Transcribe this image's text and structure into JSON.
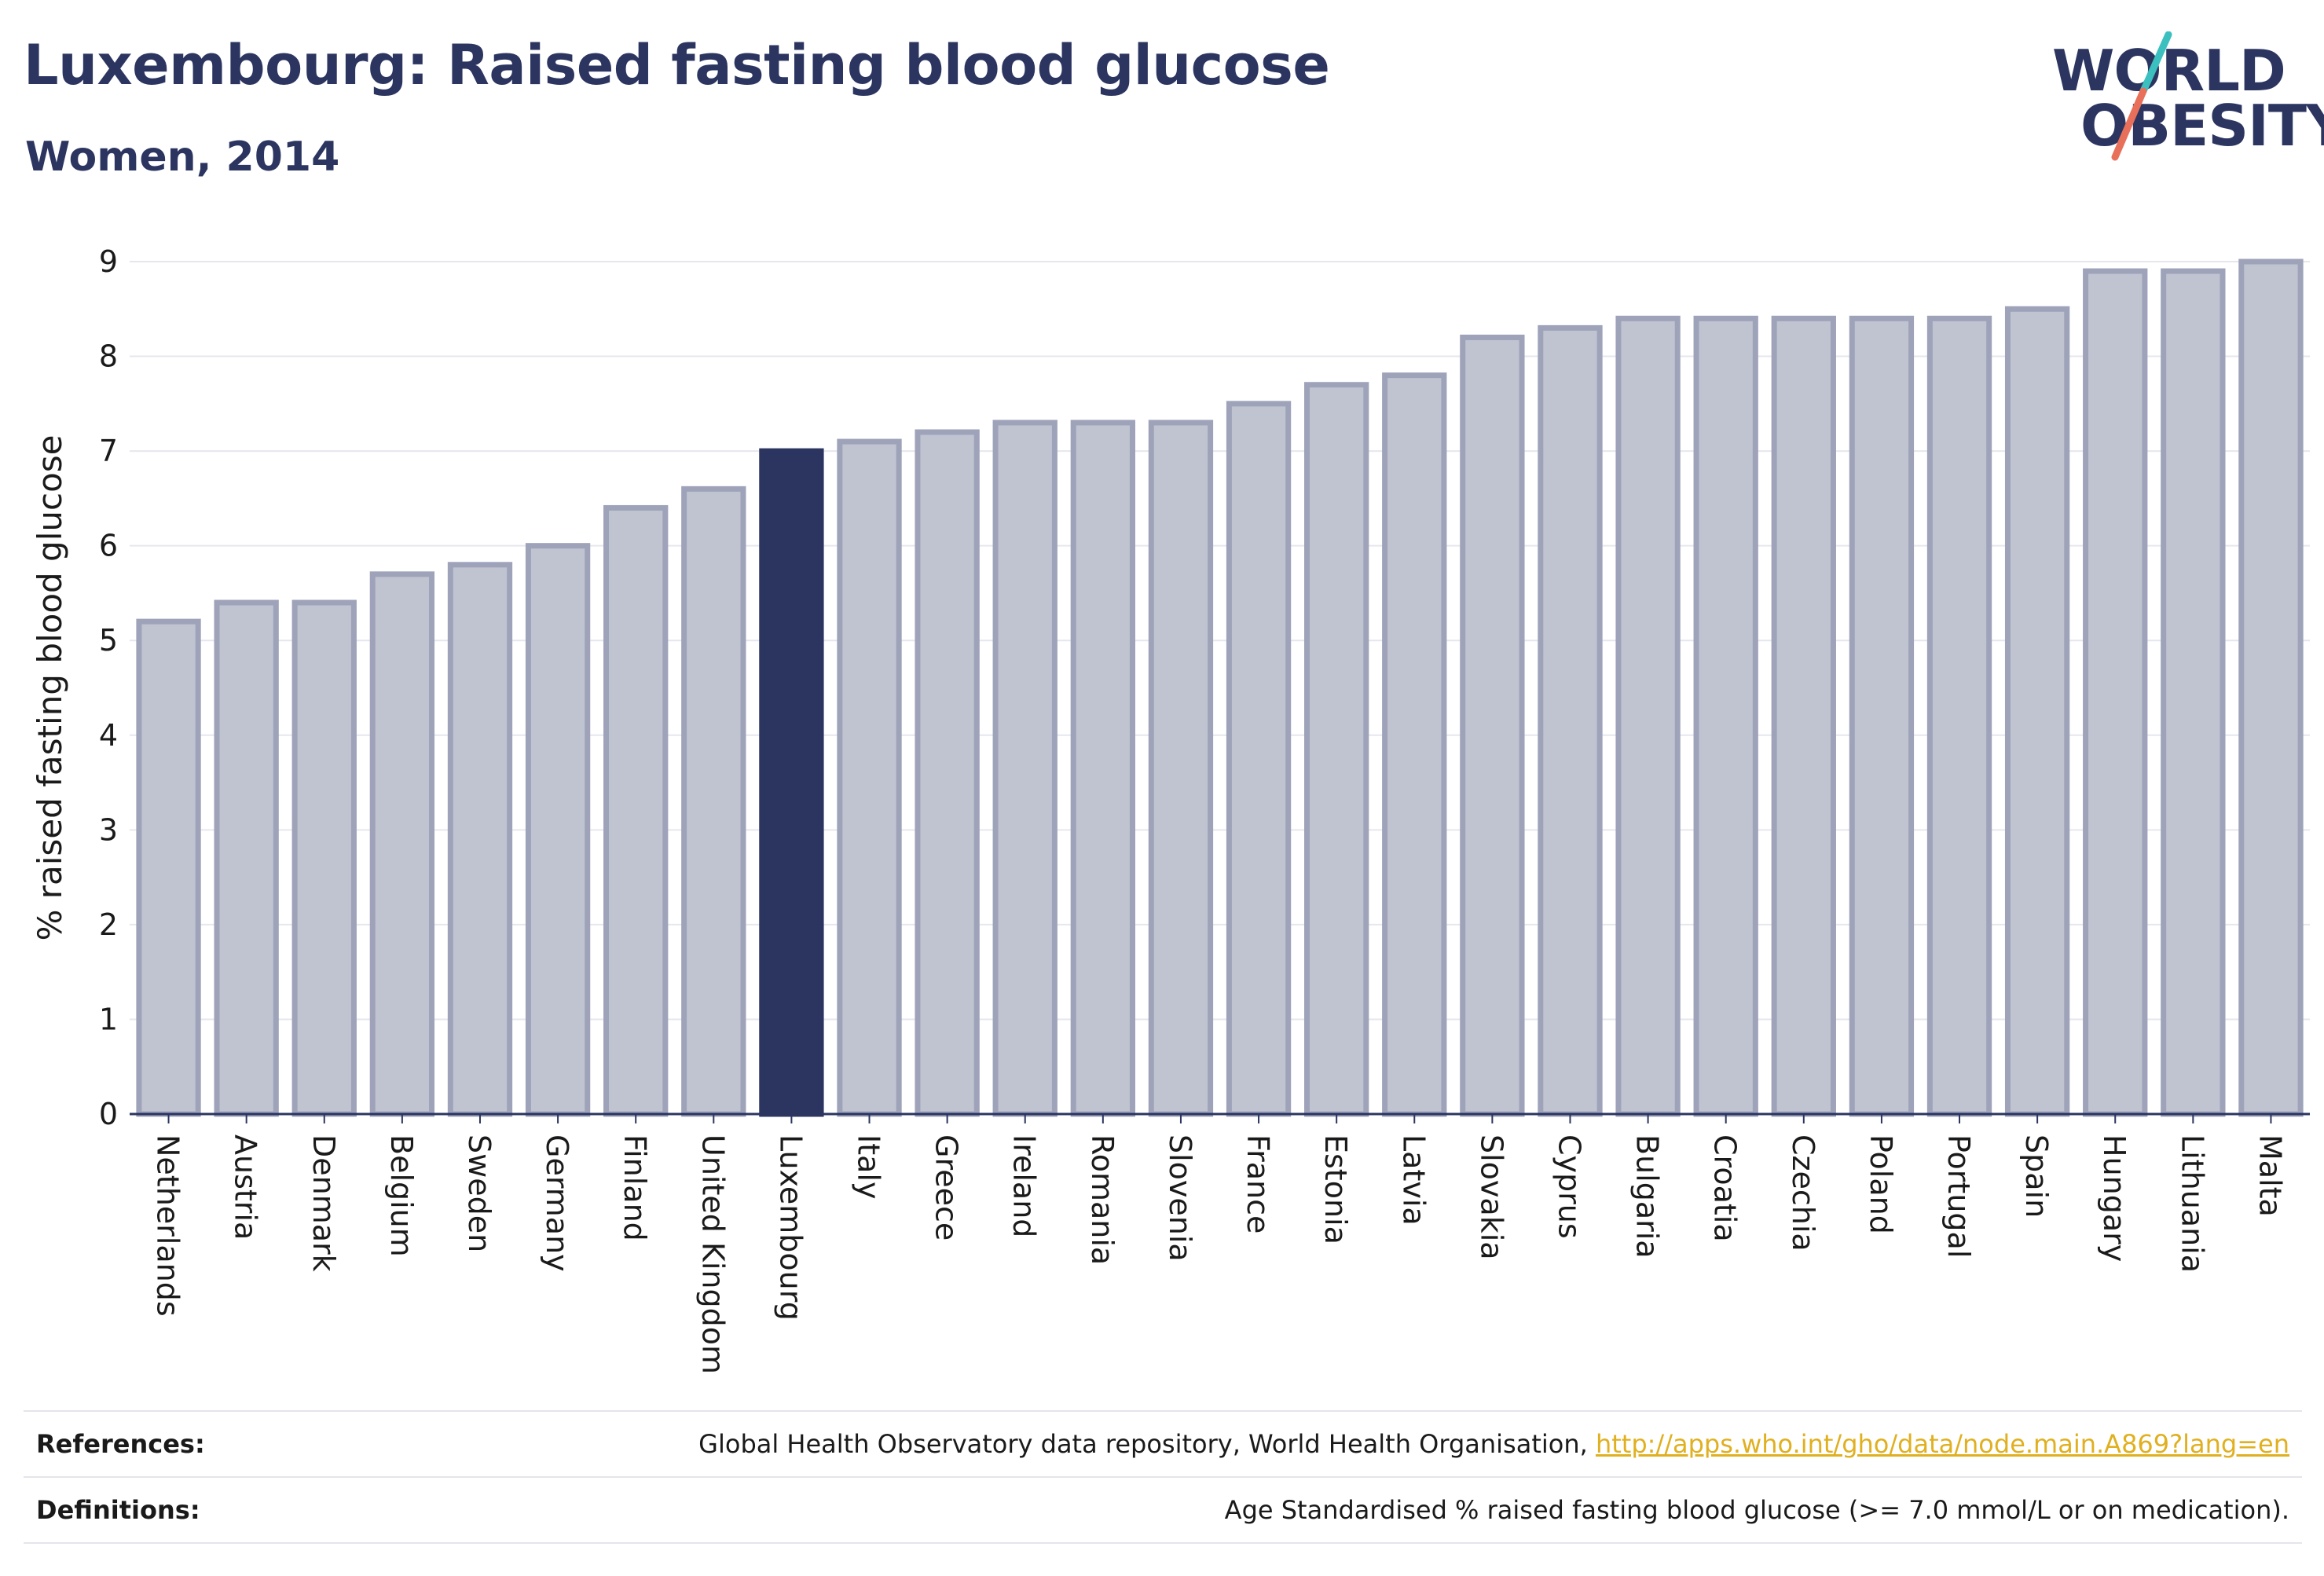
{
  "header": {
    "title": "Luxembourg: Raised fasting blood glucose",
    "subtitle": "Women, 2014"
  },
  "logo": {
    "line1": "WORLD",
    "line2": "OBESITY",
    "slash_color_top": "#3bbfbf",
    "slash_color_bottom": "#e8705a"
  },
  "colors": {
    "highlight_bar": "#2b3560",
    "other_bar_fill": "#c0c3d0",
    "other_bar_stroke": "#9ea3ba",
    "link": "#e0b020"
  },
  "chart_data": {
    "type": "bar",
    "ylabel": "% raised fasting blood glucose",
    "xlabel": "",
    "ylim": [
      0,
      9
    ],
    "yticks": [
      0,
      1,
      2,
      3,
      4,
      5,
      6,
      7,
      8,
      9
    ],
    "grid": true,
    "highlight": "Luxembourg",
    "categories": [
      "Netherlands",
      "Austria",
      "Denmark",
      "Belgium",
      "Sweden",
      "Germany",
      "Finland",
      "United Kingdom",
      "Luxembourg",
      "Italy",
      "Greece",
      "Ireland",
      "Romania",
      "Slovenia",
      "France",
      "Estonia",
      "Latvia",
      "Slovakia",
      "Cyprus",
      "Bulgaria",
      "Croatia",
      "Czechia",
      "Poland",
      "Portugal",
      "Spain",
      "Hungary",
      "Lithuania",
      "Malta"
    ],
    "values": [
      5.2,
      5.4,
      5.4,
      5.7,
      5.8,
      6.0,
      6.4,
      6.6,
      7.0,
      7.1,
      7.2,
      7.3,
      7.3,
      7.3,
      7.5,
      7.7,
      7.8,
      8.2,
      8.3,
      8.4,
      8.4,
      8.4,
      8.4,
      8.4,
      8.5,
      8.9,
      8.9,
      9.0
    ]
  },
  "footer": {
    "references_label": "References:",
    "references_text": "Global Health Observatory data repository, World Health Organisation, ",
    "references_link": "http://apps.who.int/gho/data/node.main.A869?lang=en",
    "definitions_label": "Definitions:",
    "definitions_text": "Age Standardised % raised fasting blood glucose (>= 7.0 mmol/L or on medication)."
  }
}
